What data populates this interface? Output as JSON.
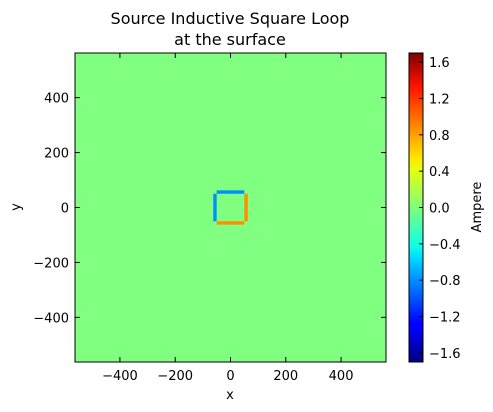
{
  "chart_data": {
    "type": "heatmap",
    "title_lines": [
      "Source Inductive Square Loop",
      "at the surface"
    ],
    "xlabel": "x",
    "ylabel": "y",
    "xlim": [
      -562.5,
      562.5
    ],
    "ylim": [
      -562.5,
      562.5
    ],
    "xticks": [
      -400,
      -200,
      0,
      200,
      400
    ],
    "yticks": [
      -400,
      -200,
      0,
      200,
      400
    ],
    "xtick_labels": [
      "−400",
      "−200",
      "0",
      "200",
      "400"
    ],
    "ytick_labels": [
      "−400",
      "−200",
      "0",
      "200",
      "400"
    ],
    "background_value": 0.0,
    "loop_segments": [
      {
        "name": "left",
        "x": [
          -62.5,
          -50
        ],
        "y": [
          -50,
          50
        ],
        "value": -0.8
      },
      {
        "name": "top",
        "x": [
          -50,
          50
        ],
        "y": [
          50,
          62.5
        ],
        "value": -0.8
      },
      {
        "name": "right",
        "x": [
          50,
          62.5
        ],
        "y": [
          -50,
          50
        ],
        "value": 0.8
      },
      {
        "name": "bottom",
        "x": [
          -50,
          50
        ],
        "y": [
          -62.5,
          -50
        ],
        "value": 0.8
      }
    ],
    "colorbar": {
      "label": "Ampere",
      "range": [
        -1.7,
        1.7
      ],
      "ticks": [
        1.6,
        1.2,
        0.8,
        0.4,
        0.0,
        -0.4,
        -0.8,
        -1.2,
        -1.6
      ],
      "tick_labels": [
        "1.6",
        "1.2",
        "0.8",
        "0.4",
        "0.0",
        "−0.4",
        "−0.8",
        "−1.2",
        "−1.6"
      ],
      "colormap": "jet"
    },
    "grid": false
  }
}
